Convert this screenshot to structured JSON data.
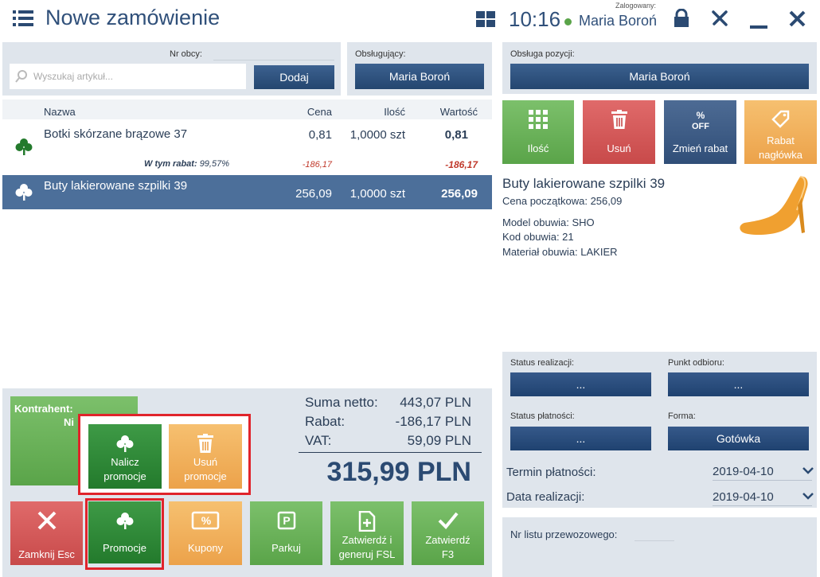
{
  "header": {
    "title": "Nowe zamówienie",
    "time": "10:16",
    "logged_label": "Zalogowany:",
    "user": "Maria Boroń"
  },
  "search": {
    "nr_obcy_label": "Nr obcy:",
    "placeholder": "Wyszukaj artykuł...",
    "add_button": "Dodaj",
    "staff_label": "Obsługujący:",
    "staff_button": "Maria Boroń"
  },
  "table": {
    "columns": [
      "Nazwa",
      "Cena",
      "Ilość",
      "Wartość"
    ],
    "rows": [
      {
        "name": "Botki skórzane brązowe 37",
        "price": "0,81",
        "quantity": "1,0000 szt",
        "value": "0,81",
        "discount_label": "W tym rabat:",
        "discount_percent": "99,57%",
        "discount_price": "-186,17",
        "discount_value": "-186,17"
      },
      {
        "name": "Buty lakierowane szpilki 39",
        "price": "256,09",
        "quantity": "1,0000 szt",
        "value": "256,09"
      }
    ]
  },
  "customer": {
    "label": "Kontrahent:",
    "value": "Ni"
  },
  "promo_popup": {
    "calculate": "Nalicz promocje",
    "remove": "Usuń promocje"
  },
  "summary": {
    "net_label": "Suma netto:",
    "net_value": "443,07 PLN",
    "discount_label": "Rabat:",
    "discount_value": "-186,17 PLN",
    "vat_label": "VAT:",
    "vat_value": "59,09 PLN",
    "total": "315,99 PLN"
  },
  "actions": [
    "Zamknij Esc",
    "Promocje",
    "Kupony",
    "Parkuj",
    "Zatwierdź i generuj FSL",
    "Zatwierdź F3"
  ],
  "position": {
    "staff_label": "Obsługa pozycji:",
    "staff_button": "Maria Boroń",
    "tiles": [
      "Ilość",
      "Usuń",
      "Zmień rabat",
      "Rabat nagłówka"
    ],
    "product_name": "Buty lakierowane szpilki 39",
    "details": [
      "Cena początkowa: 256,09",
      "Model obuwia: SHO",
      "Kod obuwia: 21",
      "Materiał obuwia: LAKIER"
    ]
  },
  "order": {
    "status_realization_label": "Status realizacji:",
    "status_realization_value": "...",
    "pickup_label": "Punkt odbioru:",
    "pickup_value": "...",
    "payment_status_label": "Status płatności:",
    "payment_status_value": "...",
    "form_label": "Forma:",
    "form_value": "Gotówka",
    "payment_term_label": "Termin płatności:",
    "payment_term_value": "2019-04-10",
    "realization_date_label": "Data realizacji:",
    "realization_date_value": "2019-04-10",
    "waybill_label": "Nr listu przewozowego:"
  }
}
